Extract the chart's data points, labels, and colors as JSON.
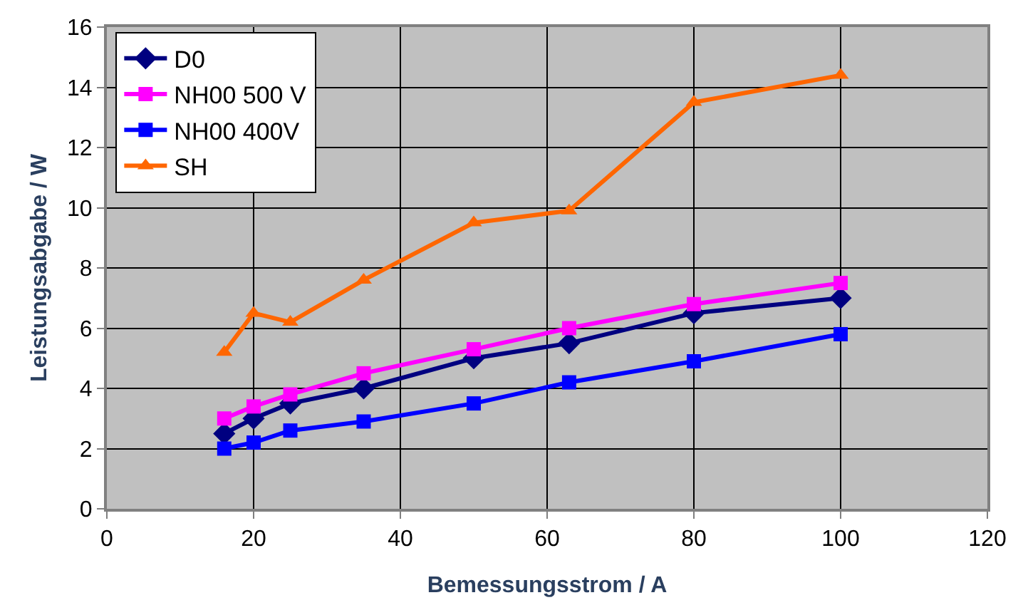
{
  "chart_data": {
    "type": "line",
    "xlabel": "Bemessungsstrom / A",
    "ylabel": "Leistungsabgabe / W",
    "x": [
      16,
      20,
      25,
      35,
      50,
      63,
      80,
      100
    ],
    "series": [
      {
        "name": "D0",
        "color": "#000080",
        "marker": "diamond",
        "values": [
          2.5,
          3.0,
          3.5,
          4.0,
          5.0,
          5.5,
          6.5,
          7.0
        ]
      },
      {
        "name": "NH00 500 V",
        "color": "#ff00ff",
        "marker": "square",
        "values": [
          3.0,
          3.4,
          3.8,
          4.5,
          5.3,
          6.0,
          6.8,
          7.5
        ]
      },
      {
        "name": "NH00 400V",
        "color": "#0000ff",
        "marker": "square",
        "values": [
          2.0,
          2.2,
          2.6,
          2.9,
          3.5,
          4.2,
          4.9,
          5.8
        ]
      },
      {
        "name": "SH",
        "color": "#ff6600",
        "marker": "triangle",
        "values": [
          5.2,
          6.5,
          6.2,
          7.6,
          9.5,
          9.9,
          13.5,
          14.4
        ]
      }
    ],
    "xlim": [
      0,
      120
    ],
    "xticks": [
      0,
      20,
      40,
      60,
      80,
      100,
      120
    ],
    "ylim": [
      0,
      16
    ],
    "yticks": [
      0,
      2,
      4,
      6,
      8,
      10,
      12,
      14,
      16
    ],
    "grid": true,
    "legend": "top left",
    "line_style": "solid"
  }
}
